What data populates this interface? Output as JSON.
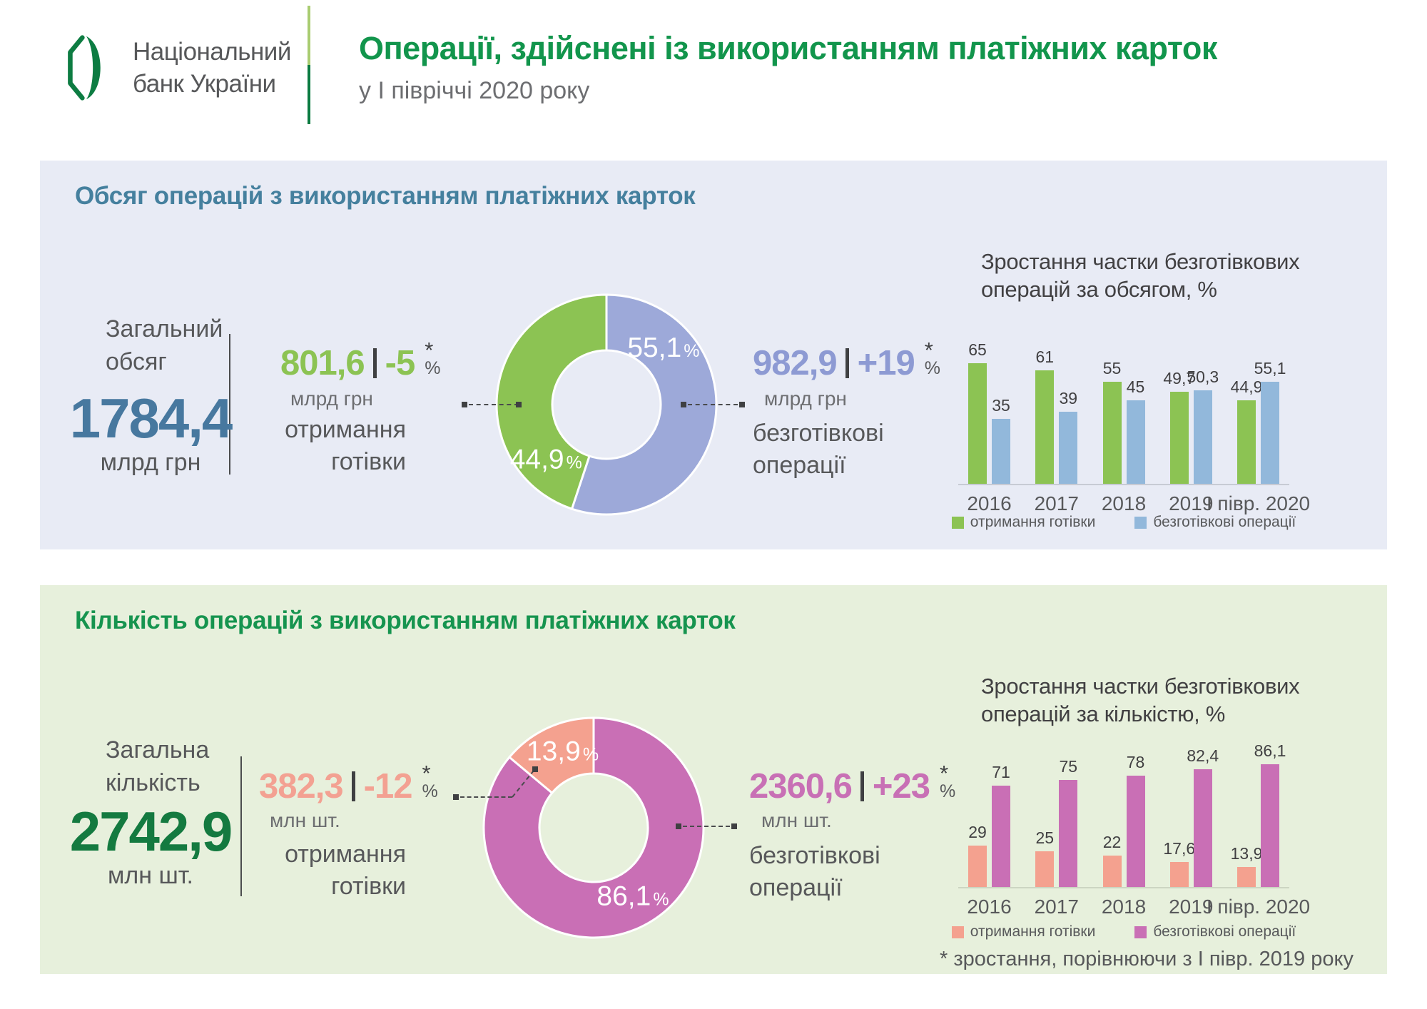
{
  "header": {
    "org_name_line1": "Національний",
    "org_name_line2": "банк України",
    "title": "Операції, здійснені із використанням платіжних карток",
    "subtitle": "у І півріччі 2020 року"
  },
  "legend": {
    "cash": "отримання готівки",
    "cashless": "безготівкові операції"
  },
  "footnote": "* зростання, порівнюючи з І півр. 2019 року",
  "colors": {
    "brand_green": "#12954c",
    "steel_blue": "#47789f",
    "dark_green": "#147a40",
    "cash_green": "#8cc353",
    "cashless_periwinkle": "#9da9d9",
    "cashless_bar_blue": "#92b8db",
    "cash_salmon": "#f4a18f",
    "cashless_orchid": "#c96fb5",
    "panel_volume_bg": "#e8ebf5",
    "panel_count_bg": "#e7f0dc",
    "text_gray": "#58595b"
  },
  "volume_section": {
    "title": "Обсяг операцій з використанням платіжних карток",
    "total_label_line1": "Загальний",
    "total_label_line2": "обсяг",
    "total_value": "1784,4",
    "total_unit": "млрд грн",
    "cash": {
      "value": "801,6",
      "change": "-5",
      "star": "*",
      "percent_sign": "%",
      "unit": "млрд грн",
      "name_line1": "отримання",
      "name_line2": "готівки"
    },
    "cashless": {
      "value": "982,9",
      "change": "+19",
      "star": "*",
      "percent_sign": "%",
      "unit": "млрд грн",
      "name_line1": "безготівкові",
      "name_line2": "операції"
    },
    "chart_title_line1": "Зростання частки безготівкових",
    "chart_title_line2": "операцій за обсягом, %"
  },
  "count_section": {
    "title": "Кількість операцій з використанням платіжних карток",
    "total_label_line1": "Загальна",
    "total_label_line2": "кількість",
    "total_value": "2742,9",
    "total_unit": "млн шт.",
    "cash": {
      "value": "382,3",
      "change": "-12",
      "star": "*",
      "percent_sign": "%",
      "unit": "млн шт.",
      "name_line1": "отримання",
      "name_line2": "готівки"
    },
    "cashless": {
      "value": "2360,6",
      "change": "+23",
      "star": "*",
      "percent_sign": "%",
      "unit": "млн шт.",
      "name_line1": "безготівкові",
      "name_line2": "операції"
    },
    "chart_title_line1": "Зростання частки безготівкових",
    "chart_title_line2": "операцій за кількістю, %"
  },
  "chart_data": [
    {
      "type": "pie",
      "title": "Обсяг операцій з використанням платіжних карток, розподіл часток",
      "slices": [
        {
          "label": "безготівкові операції",
          "value": 55.1,
          "display": "55,1",
          "color": "#9da9d9",
          "label_angle": 45,
          "label_r": 113
        },
        {
          "label": "отримання готівки",
          "value": 44.9,
          "display": "44,9",
          "color": "#8cc353",
          "label_angle": 228,
          "label_r": 114
        }
      ]
    },
    {
      "type": "pie",
      "title": "Кількість операцій з використанням платіжних карток, розподіл часток",
      "slices": [
        {
          "label": "безготівкові операції",
          "value": 86.1,
          "display": "86,1",
          "color": "#c96fb5",
          "label_angle": 150,
          "label_r": 110
        },
        {
          "label": "отримання готівки",
          "value": 13.9,
          "display": "13,9",
          "color": "#f4a18f",
          "label_angle": 338,
          "label_r": 116
        }
      ]
    },
    {
      "type": "bar",
      "title": "Зростання частки безготівкових операцій за обсягом, %",
      "categories": [
        "2016",
        "2017",
        "2018",
        "2019",
        "І півр. 2020"
      ],
      "series": [
        {
          "name": "отримання готівки",
          "color": "#8cc353",
          "values": [
            65,
            61,
            55,
            49.7,
            44.9
          ],
          "labels": [
            "65",
            "61",
            "55",
            "49,7",
            "44,9"
          ]
        },
        {
          "name": "безготівкові операції",
          "color": "#92b8db",
          "values": [
            35,
            39,
            45,
            50.3,
            55.1
          ],
          "labels": [
            "35",
            "39",
            "45",
            "50,3",
            "55,1"
          ]
        }
      ],
      "ylim": [
        0,
        70
      ],
      "grid": false,
      "legend_position": "bottom"
    },
    {
      "type": "bar",
      "title": "Зростання частки безготівкових операцій за кількістю, %",
      "categories": [
        "2016",
        "2017",
        "2018",
        "2019",
        "І півр. 2020"
      ],
      "series": [
        {
          "name": "отримання готівки",
          "color": "#f4a18f",
          "values": [
            29,
            25,
            22,
            17.6,
            13.9
          ],
          "labels": [
            "29",
            "25",
            "22",
            "17,6",
            "13,9"
          ]
        },
        {
          "name": "безготівкові операції",
          "color": "#c96fb5",
          "values": [
            71,
            75,
            78,
            82.4,
            86.1
          ],
          "labels": [
            "71",
            "75",
            "78",
            "82,4",
            "86,1"
          ]
        }
      ],
      "ylim": [
        0,
        90
      ],
      "grid": false,
      "legend_position": "bottom"
    }
  ]
}
